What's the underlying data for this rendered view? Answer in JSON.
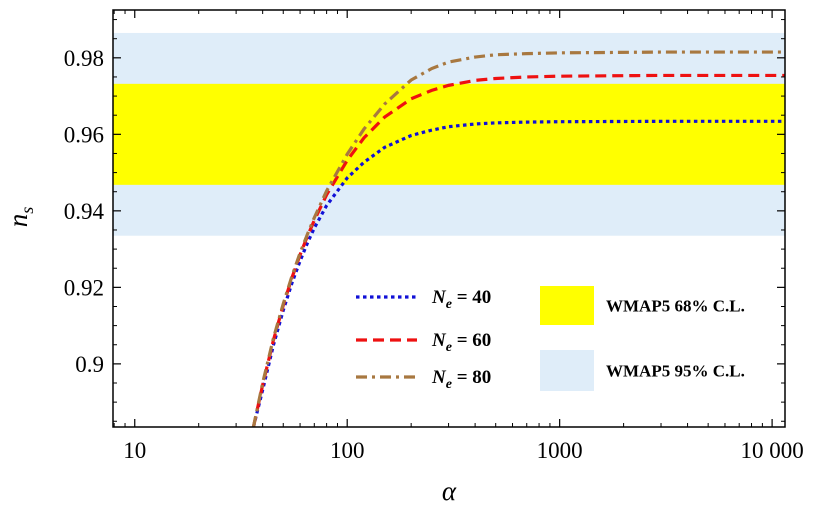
{
  "chart_data": {
    "type": "line",
    "xlabel": "α",
    "ylabel": "n",
    "ylabel_subscript": "s",
    "xscale": "log",
    "xlim": [
      7.9,
      11500
    ],
    "ylim": [
      0.8835,
      0.9925
    ],
    "x_ticks": [
      {
        "value": 10,
        "label": "10"
      },
      {
        "value": 100,
        "label": "100"
      },
      {
        "value": 1000,
        "label": "1000"
      },
      {
        "value": 10000,
        "label": "10 000"
      }
    ],
    "y_ticks": [
      {
        "value": 0.9,
        "label": "0.9"
      },
      {
        "value": 0.92,
        "label": "0.92"
      },
      {
        "value": 0.94,
        "label": "0.94"
      },
      {
        "value": 0.96,
        "label": "0.96"
      },
      {
        "value": 0.98,
        "label": "0.98"
      }
    ],
    "bands": [
      {
        "name": "WMAP5 95% C.L.",
        "ymin": 0.9335,
        "ymax": 0.9865,
        "color": "#dfedf9"
      },
      {
        "name": "WMAP5 68% C.L.",
        "ymin": 0.9468,
        "ymax": 0.9732,
        "color": "#ffff00"
      }
    ],
    "series": [
      {
        "name": "N",
        "name_subscript": "e",
        "name_suffix": " = 40",
        "color": "#1111d6",
        "dash": "dotted",
        "points": [
          [
            36.2,
            0.8835
          ],
          [
            40,
            0.8932
          ],
          [
            45,
            0.905
          ],
          [
            50,
            0.914
          ],
          [
            55,
            0.9212
          ],
          [
            60,
            0.9269
          ],
          [
            65,
            0.9316
          ],
          [
            70,
            0.9355
          ],
          [
            80,
            0.9414
          ],
          [
            100,
            0.9486
          ],
          [
            120,
            0.9527
          ],
          [
            150,
            0.9566
          ],
          [
            200,
            0.9597
          ],
          [
            250,
            0.9611
          ],
          [
            300,
            0.962
          ],
          [
            400,
            0.9627
          ],
          [
            500,
            0.963
          ],
          [
            700,
            0.9632
          ],
          [
            1000,
            0.9633
          ],
          [
            3000,
            0.9634
          ],
          [
            11500,
            0.9634
          ]
        ]
      },
      {
        "name": "N",
        "name_subscript": "e",
        "name_suffix": " = 60",
        "color": "#ee1111",
        "dash": "dashed",
        "points": [
          [
            36.2,
            0.8835
          ],
          [
            40,
            0.8945
          ],
          [
            45,
            0.9063
          ],
          [
            50,
            0.9153
          ],
          [
            55,
            0.9226
          ],
          [
            60,
            0.9285
          ],
          [
            65,
            0.9334
          ],
          [
            70,
            0.9375
          ],
          [
            80,
            0.9442
          ],
          [
            100,
            0.9532
          ],
          [
            120,
            0.9591
          ],
          [
            150,
            0.9645
          ],
          [
            200,
            0.9693
          ],
          [
            250,
            0.9715
          ],
          [
            300,
            0.9728
          ],
          [
            400,
            0.9741
          ],
          [
            500,
            0.9746
          ],
          [
            700,
            0.975
          ],
          [
            1000,
            0.9752
          ],
          [
            3000,
            0.9754
          ],
          [
            11500,
            0.9754
          ]
        ]
      },
      {
        "name": "N",
        "name_subscript": "e",
        "name_suffix": " = 80",
        "color": "#a87840",
        "dash": "dashdot",
        "points": [
          [
            36.2,
            0.8835
          ],
          [
            40,
            0.895
          ],
          [
            45,
            0.9068
          ],
          [
            50,
            0.9157
          ],
          [
            55,
            0.923
          ],
          [
            60,
            0.929
          ],
          [
            65,
            0.9339
          ],
          [
            70,
            0.9382
          ],
          [
            80,
            0.9452
          ],
          [
            100,
            0.9548
          ],
          [
            120,
            0.9614
          ],
          [
            150,
            0.9679
          ],
          [
            200,
            0.9742
          ],
          [
            250,
            0.9772
          ],
          [
            300,
            0.9789
          ],
          [
            400,
            0.9802
          ],
          [
            500,
            0.9808
          ],
          [
            700,
            0.9811
          ],
          [
            1000,
            0.9813
          ],
          [
            3000,
            0.9815
          ],
          [
            11500,
            0.9815
          ]
        ]
      }
    ],
    "legend": {
      "lines_position": "bottom-center",
      "bands_position": "bottom-right",
      "band_entries": [
        {
          "label": "WMAP5 68% C.L.",
          "color": "#ffff00"
        },
        {
          "label": "WMAP5 95% C.L.",
          "color": "#dfedf9"
        }
      ]
    },
    "grid": false
  }
}
